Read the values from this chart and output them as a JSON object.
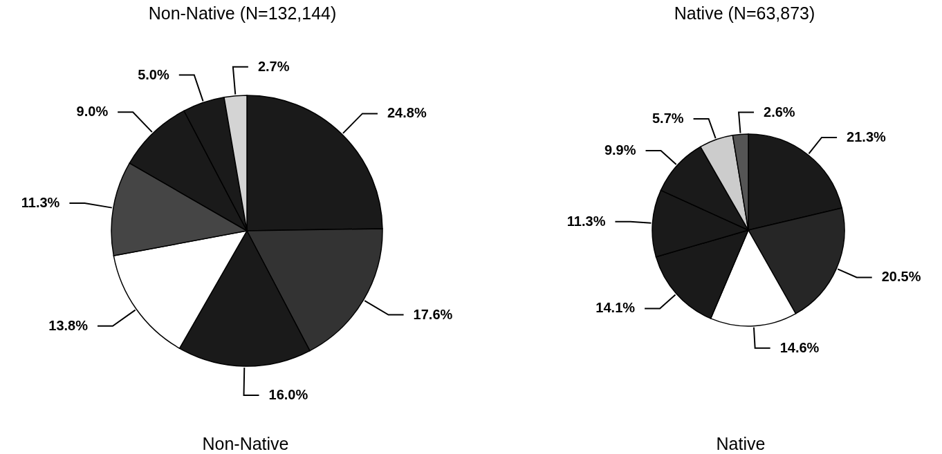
{
  "chart_data": [
    {
      "type": "pie",
      "title": "Non-Native (N=132,144)",
      "categories": [
        null,
        null,
        null,
        null,
        null,
        null,
        null,
        null
      ],
      "values": [
        24.8,
        17.6,
        16.0,
        13.8,
        11.3,
        9.0,
        5.0,
        2.7
      ],
      "colors": [
        "#1a1a1a",
        "#333333",
        "#1a1a1a",
        "#ffffff",
        "#454545",
        "#1a1a1a",
        "#1a1a1a",
        "#d4d4d4"
      ],
      "value_labels": [
        "24.8%",
        "17.6%",
        "16.0%",
        "13.8%",
        "11.3%",
        "9.0%",
        "5.0%",
        "2.7%"
      ],
      "annotations": [
        "Non-Native"
      ]
    },
    {
      "type": "pie",
      "title": "Native (N=63,873)",
      "categories": [
        null,
        null,
        null,
        null,
        null,
        null,
        null,
        null
      ],
      "values": [
        21.3,
        20.5,
        14.6,
        14.1,
        11.3,
        9.9,
        5.7,
        2.6
      ],
      "colors": [
        "#1a1a1a",
        "#262626",
        "#ffffff",
        "#1a1a1a",
        "#1a1a1a",
        "#1a1a1a",
        "#cccccc",
        "#555555"
      ],
      "value_labels": [
        "21.3%",
        "20.5%",
        "14.6%",
        "14.1%",
        "11.3%",
        "9.9%",
        "5.7%",
        "2.6%"
      ],
      "annotations": [
        "Native"
      ]
    }
  ]
}
